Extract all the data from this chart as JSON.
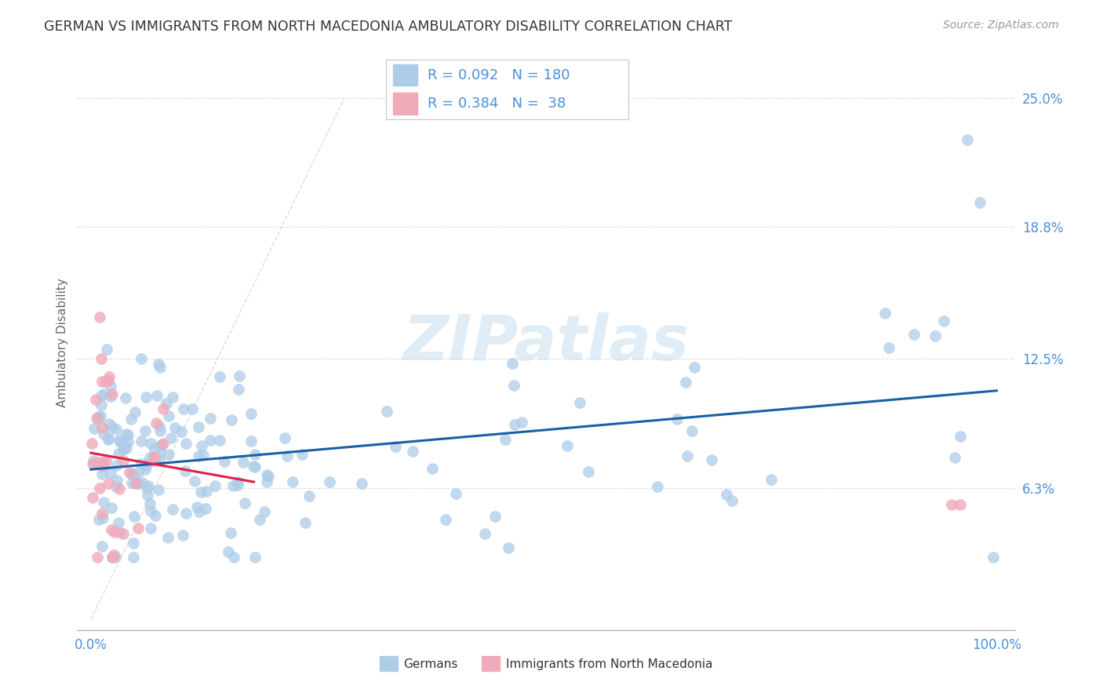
{
  "title": "GERMAN VS IMMIGRANTS FROM NORTH MACEDONIA AMBULATORY DISABILITY CORRELATION CHART",
  "source": "Source: ZipAtlas.com",
  "ylabel": "Ambulatory Disability",
  "watermark": "ZIPatlas",
  "blue_R": 0.092,
  "blue_N": 180,
  "pink_R": 0.384,
  "pink_N": 38,
  "blue_color": "#aecce8",
  "pink_color": "#f0aaba",
  "blue_line_color": "#1a5fa8",
  "pink_line_color": "#e0204a",
  "axis_color": "#4a90d9",
  "title_color": "#333333",
  "source_color": "#999999",
  "ytick_vals": [
    0.063,
    0.125,
    0.188,
    0.25
  ],
  "ytick_labels": [
    "6.3%",
    "12.5%",
    "18.8%",
    "25.0%"
  ],
  "background_color": "#ffffff",
  "grid_color": "#e0e0e0",
  "legend_label_blue": "Germans",
  "legend_label_pink": "Immigrants from North Macedonia"
}
